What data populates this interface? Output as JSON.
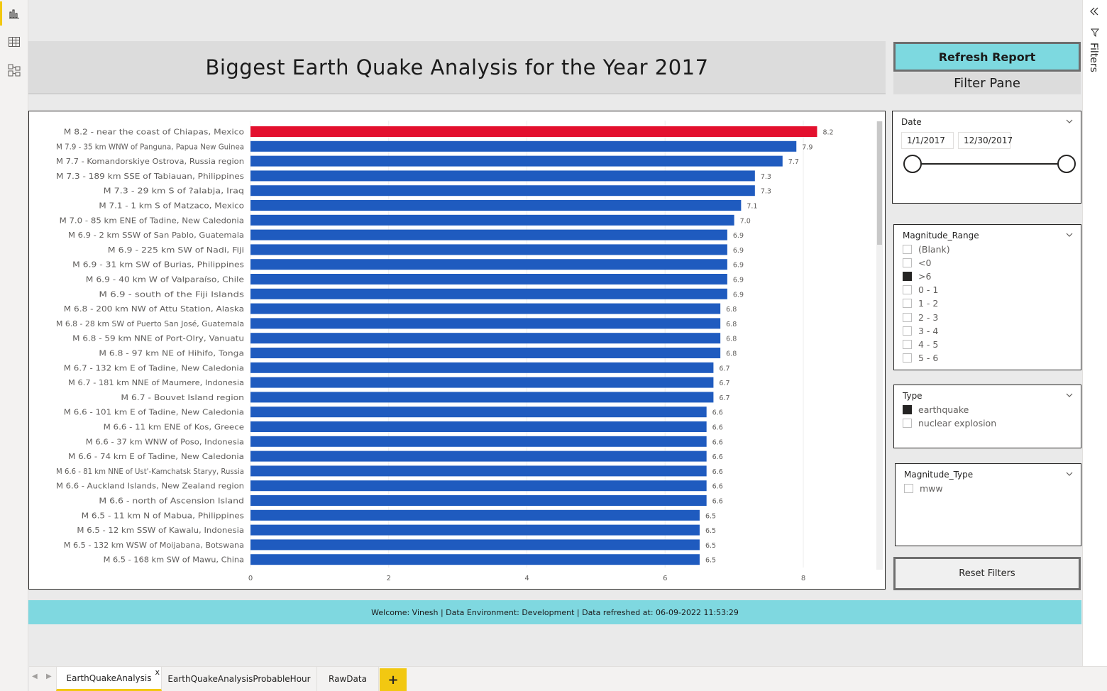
{
  "header": {
    "title": "Biggest Earth Quake Analysis for the Year 2017",
    "refresh_label": "Refresh Report",
    "filter_pane_label": "Filter Pane"
  },
  "right_rail": {
    "filters_label": "Filters"
  },
  "left_rail": {
    "items": [
      "report-view-icon",
      "data-view-icon",
      "model-view-icon"
    ]
  },
  "colors": {
    "highlight_bar": "#e3102e",
    "bar": "#1f5bbf",
    "accent": "#7dd9e0",
    "tab_accent": "#f2c811"
  },
  "chart_data": {
    "type": "bar",
    "orientation": "horizontal",
    "categories": [
      "M 8.2 - near the coast of Chiapas, Mexico",
      "M 7.9 - 35 km WNW of Panguna, Papua New Guinea",
      "M 7.7 - Komandorskiye Ostrova, Russia region",
      "M 7.3 - 189 km SSE of Tabiauan, Philippines",
      "M 7.3 - 29 km S of ?alabja, Iraq",
      "M 7.1 - 1 km S of Matzaco, Mexico",
      "M 7.0 - 85 km ENE of Tadine, New Caledonia",
      "M 6.9 - 2 km SSW of San Pablo, Guatemala",
      "M 6.9 - 225 km SW of Nadi, Fiji",
      "M 6.9 - 31 km SW of Burias, Philippines",
      "M 6.9 - 40 km W of Valparaíso, Chile",
      "M 6.9 - south of the Fiji Islands",
      "M 6.8 - 200 km NW of Attu Station, Alaska",
      "M 6.8 - 28 km SW of Puerto San José, Guatemala",
      "M 6.8 - 59 km NNE of Port-Olry, Vanuatu",
      "M 6.8 - 97 km NE of Hihifo, Tonga",
      "M 6.7 - 132 km E of Tadine, New Caledonia",
      "M 6.7 - 181 km NNE of Maumere, Indonesia",
      "M 6.7 - Bouvet Island region",
      "M 6.6 - 101 km E of Tadine, New Caledonia",
      "M 6.6 - 11 km ENE of Kos, Greece",
      "M 6.6 - 37 km WNW of Poso, Indonesia",
      "M 6.6 - 74 km E of Tadine, New Caledonia",
      "M 6.6 - 81 km NNE of Ust'-Kamchatsk Staryy, Russia",
      "M 6.6 - Auckland Islands, New Zealand region",
      "M 6.6 - north of Ascension Island",
      "M 6.5 - 11 km N of Mabua, Philippines",
      "M 6.5 - 12 km SSW of Kawalu, Indonesia",
      "M 6.5 - 132 km WSW of Moijabana, Botswana",
      "M 6.5 - 168 km SW of Mawu, China"
    ],
    "values": [
      8.2,
      7.9,
      7.7,
      7.3,
      7.3,
      7.1,
      7.0,
      6.9,
      6.9,
      6.9,
      6.9,
      6.9,
      6.8,
      6.8,
      6.8,
      6.8,
      6.7,
      6.7,
      6.7,
      6.6,
      6.6,
      6.6,
      6.6,
      6.6,
      6.6,
      6.6,
      6.5,
      6.5,
      6.5,
      6.5
    ],
    "value_labels": [
      "8.2",
      "7.9",
      "7.7",
      "7.3",
      "7.3",
      "7.1",
      "7.0",
      "6.9",
      "6.9",
      "6.9",
      "6.9",
      "6.9",
      "6.8",
      "6.8",
      "6.8",
      "6.8",
      "6.7",
      "6.7",
      "6.7",
      "6.6",
      "6.6",
      "6.6",
      "6.6",
      "6.6",
      "6.6",
      "6.6",
      "6.5",
      "6.5",
      "6.5",
      "6.5"
    ],
    "highlight_index": 0,
    "xlim": [
      0,
      9.3
    ],
    "xticks": [
      0,
      2,
      4,
      6,
      8
    ],
    "grid": true,
    "title": "",
    "xlabel": "",
    "ylabel": ""
  },
  "slicers": {
    "date": {
      "title": "Date",
      "start": "1/1/2017",
      "end": "12/30/2017"
    },
    "magnitude_range": {
      "title": "Magnitude_Range",
      "options": [
        {
          "label": "(Blank)",
          "checked": false
        },
        {
          "label": "<0",
          "checked": false
        },
        {
          "label": ">6",
          "checked": true
        },
        {
          "label": "0 - 1",
          "checked": false
        },
        {
          "label": "1 - 2",
          "checked": false
        },
        {
          "label": "2 - 3",
          "checked": false
        },
        {
          "label": "3 - 4",
          "checked": false
        },
        {
          "label": "4 - 5",
          "checked": false
        },
        {
          "label": "5 - 6",
          "checked": false
        }
      ]
    },
    "type": {
      "title": "Type",
      "options": [
        {
          "label": "earthquake",
          "checked": true
        },
        {
          "label": "nuclear explosion",
          "checked": false
        }
      ]
    },
    "magnitude_type": {
      "title": "Magnitude_Type",
      "options": [
        {
          "label": "mww",
          "checked": false
        }
      ]
    }
  },
  "reset_label": "Reset Filters",
  "footer": {
    "text": "Welcome: Vinesh | Data Environment: Development | Data refreshed at: 06-09-2022 11:53:29"
  },
  "tabs": [
    {
      "label": "EarthQuakeAnalysis",
      "active": true
    },
    {
      "label": "EarthQuakeAnalysisProbableHour",
      "active": false
    },
    {
      "label": "RawData",
      "active": false
    }
  ],
  "tab_close": "x",
  "tab_add": "+"
}
